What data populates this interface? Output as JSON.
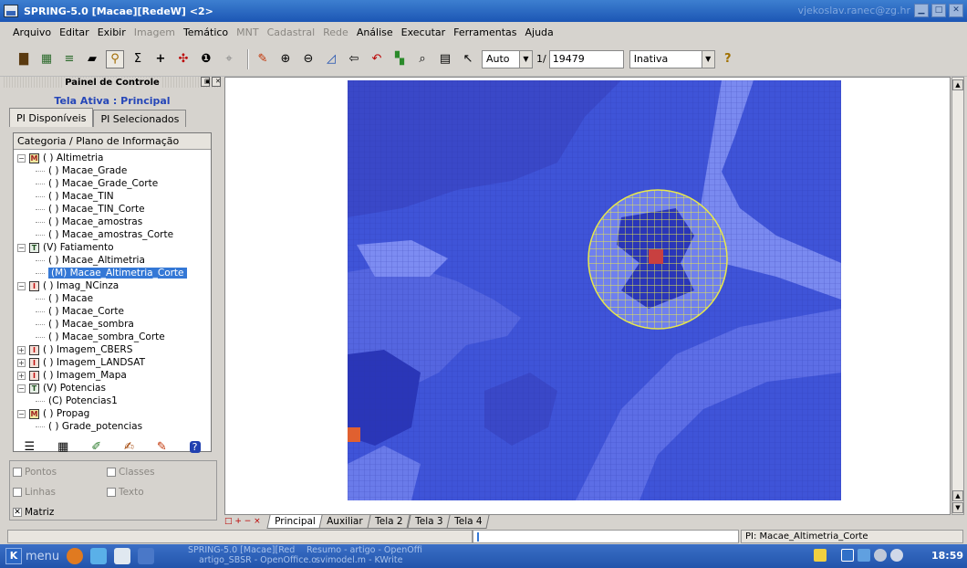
{
  "window": {
    "title": "SPRING-5.0 [Macae][RedeW] <2>",
    "user": "vjekoslav.ranec@zg.hr"
  },
  "menu": [
    {
      "label": "Arquivo",
      "enabled": true
    },
    {
      "label": "Editar",
      "enabled": true
    },
    {
      "label": "Exibir",
      "enabled": true
    },
    {
      "label": "Imagem",
      "enabled": false
    },
    {
      "label": "Temático",
      "enabled": true
    },
    {
      "label": "MNT",
      "enabled": false
    },
    {
      "label": "Cadastral",
      "enabled": false
    },
    {
      "label": "Rede",
      "enabled": false
    },
    {
      "label": "Análise",
      "enabled": true
    },
    {
      "label": "Executar",
      "enabled": true
    },
    {
      "label": "Ferramentas",
      "enabled": true
    },
    {
      "label": "Ajuda",
      "enabled": true
    }
  ],
  "toolbar": {
    "scale_mode": "Auto",
    "scale_prefix": "1/",
    "scale_value": "19479",
    "status_select": "Inativa",
    "help": "?"
  },
  "panel": {
    "title": "Painel de Controle",
    "active_screen": "Tela Ativa : Principal",
    "tabs": [
      "PI Disponíveis",
      "PI Selecionados"
    ],
    "tree_header": "Categoria / Plano de Informação",
    "tree": [
      {
        "type": "cat",
        "code": "M",
        "label": "( ) Altimetria"
      },
      {
        "type": "pi",
        "label": "( ) Macae_Grade"
      },
      {
        "type": "pi",
        "label": "( ) Macae_Grade_Corte"
      },
      {
        "type": "pi",
        "label": "( ) Macae_TIN"
      },
      {
        "type": "pi",
        "label": "( ) Macae_TIN_Corte"
      },
      {
        "type": "pi",
        "label": "( ) Macae_amostras"
      },
      {
        "type": "pi",
        "label": "( ) Macae_amostras_Corte"
      },
      {
        "type": "cat",
        "code": "T",
        "label": "(V) Fatiamento"
      },
      {
        "type": "pi",
        "label": "( ) Macae_Altimetria"
      },
      {
        "type": "pi",
        "label": "(M) Macae_Altimetria_Corte",
        "selected": true
      },
      {
        "type": "cat",
        "code": "I",
        "label": "( ) Imag_NCinza"
      },
      {
        "type": "pi",
        "label": "( ) Macae"
      },
      {
        "type": "pi",
        "label": "( ) Macae_Corte"
      },
      {
        "type": "pi",
        "label": "( ) Macae_sombra"
      },
      {
        "type": "pi",
        "label": "( ) Macae_sombra_Corte"
      },
      {
        "type": "cat",
        "code": "I",
        "label": "( ) Imagem_CBERS",
        "collapsed": true
      },
      {
        "type": "cat",
        "code": "I",
        "label": "( ) Imagem_LANDSAT",
        "collapsed": true
      },
      {
        "type": "cat",
        "code": "I",
        "label": "( ) Imagem_Mapa",
        "collapsed": true
      },
      {
        "type": "cat",
        "code": "T",
        "label": "(V) Potencias"
      },
      {
        "type": "pi",
        "label": "(C) Potencias1"
      },
      {
        "type": "cat",
        "code": "M",
        "label": "( ) Propag"
      },
      {
        "type": "pi",
        "label": "( ) Grade_potencias"
      }
    ],
    "options": [
      {
        "label": "Pontos",
        "checked": false
      },
      {
        "label": "Classes",
        "checked": false
      },
      {
        "label": "Linhas",
        "checked": false
      },
      {
        "label": "Texto",
        "checked": false
      },
      {
        "label": "Matriz",
        "checked": true
      }
    ]
  },
  "screen_tabs": [
    "Principal",
    "Auxiliar",
    "Tela 2",
    "Tela 3",
    "Tela 4"
  ],
  "tab_controls": "□ + − ×",
  "status": {
    "pi": "PI: Macae_Altimetria_Corte"
  },
  "taskbar": {
    "menu": "menu",
    "tasks": [
      {
        "line1": "SPRING-5.0 [Macae][Red",
        "line2": ""
      },
      {
        "line1": "Resumo - artigo - OpenOffi",
        "line2": "artigo_SBSR - OpenOffice.o"
      },
      {
        "line1": "",
        "line2": "svimodel.m - KWrite"
      }
    ],
    "clock": "18:59"
  },
  "colors": {
    "map_water": "#3f54d8",
    "map_light": "#6f80ee",
    "map_dark": "#2a36b8",
    "grid_overlay": "#e8e84a",
    "titlebar": "#1c56b4",
    "selection": "#3478d6"
  }
}
